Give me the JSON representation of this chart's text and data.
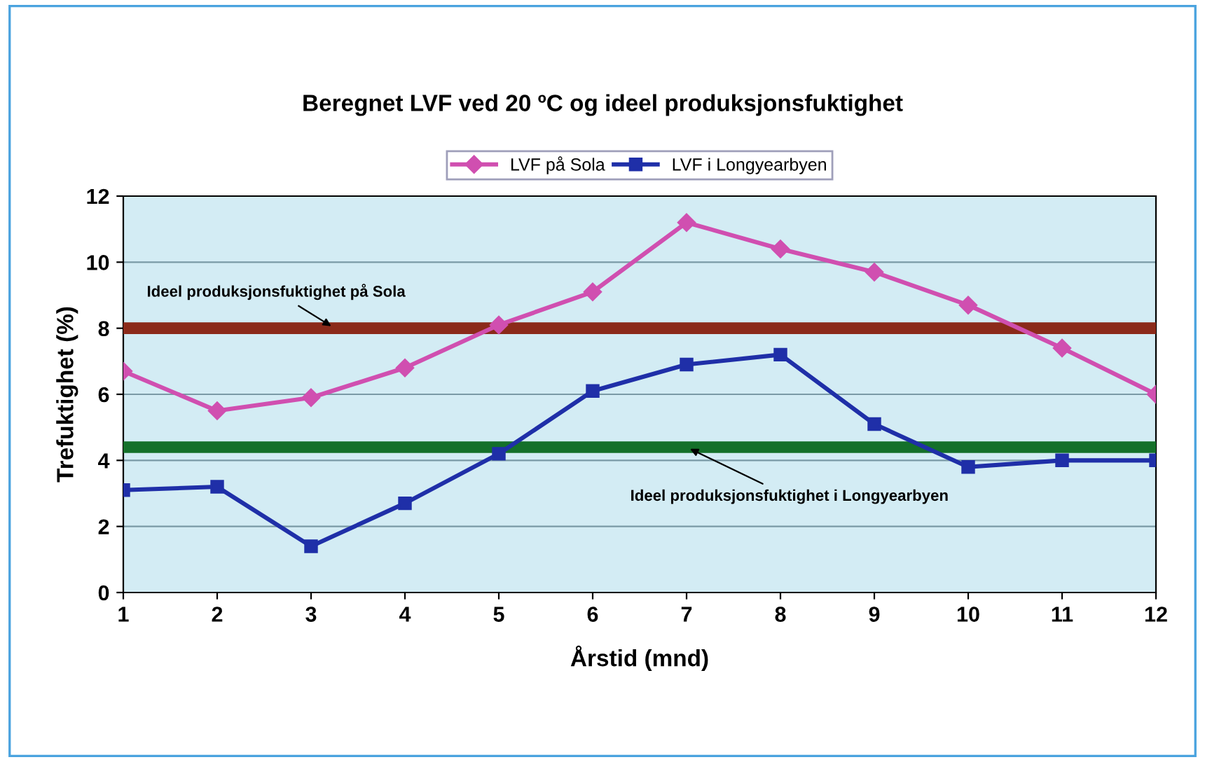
{
  "chart_data": {
    "type": "line",
    "title": "Beregnet LVF ved 20 ºC og ideel produksjonsfuktighet",
    "xlabel": "Årstid (mnd)",
    "ylabel": "Trefuktighet (%)",
    "x": [
      1,
      2,
      3,
      4,
      5,
      6,
      7,
      8,
      9,
      10,
      11,
      12
    ],
    "series": [
      {
        "name": "LVF på Sola",
        "color": "#d04fb0",
        "marker": "diamond",
        "values": [
          6.7,
          5.5,
          5.9,
          6.8,
          8.1,
          9.1,
          11.2,
          10.4,
          9.7,
          8.7,
          7.4,
          6.0
        ]
      },
      {
        "name": "LVF i Longyearbyen",
        "color": "#1f2fa8",
        "marker": "square",
        "values": [
          3.1,
          3.2,
          1.4,
          2.7,
          4.2,
          6.1,
          6.9,
          7.2,
          5.1,
          3.8,
          4.0,
          4.0
        ]
      }
    ],
    "ref_lines": [
      {
        "axis": "y",
        "value": 8,
        "label": "Ideel produksjonsfuktighet på Sola",
        "color": "#8b2a1a"
      },
      {
        "axis": "y",
        "value": 4.4,
        "label": "Ideel produksjonsfuktighet i Longyearbyen",
        "color": "#14702a"
      }
    ],
    "xlim": [
      1,
      12
    ],
    "xticks": [
      1,
      2,
      3,
      4,
      5,
      6,
      7,
      8,
      9,
      10,
      11,
      12
    ],
    "ylim": [
      0,
      12
    ],
    "yticks": [
      0,
      2,
      4,
      6,
      8,
      10,
      12
    ],
    "grid": "y",
    "legend": "top"
  }
}
